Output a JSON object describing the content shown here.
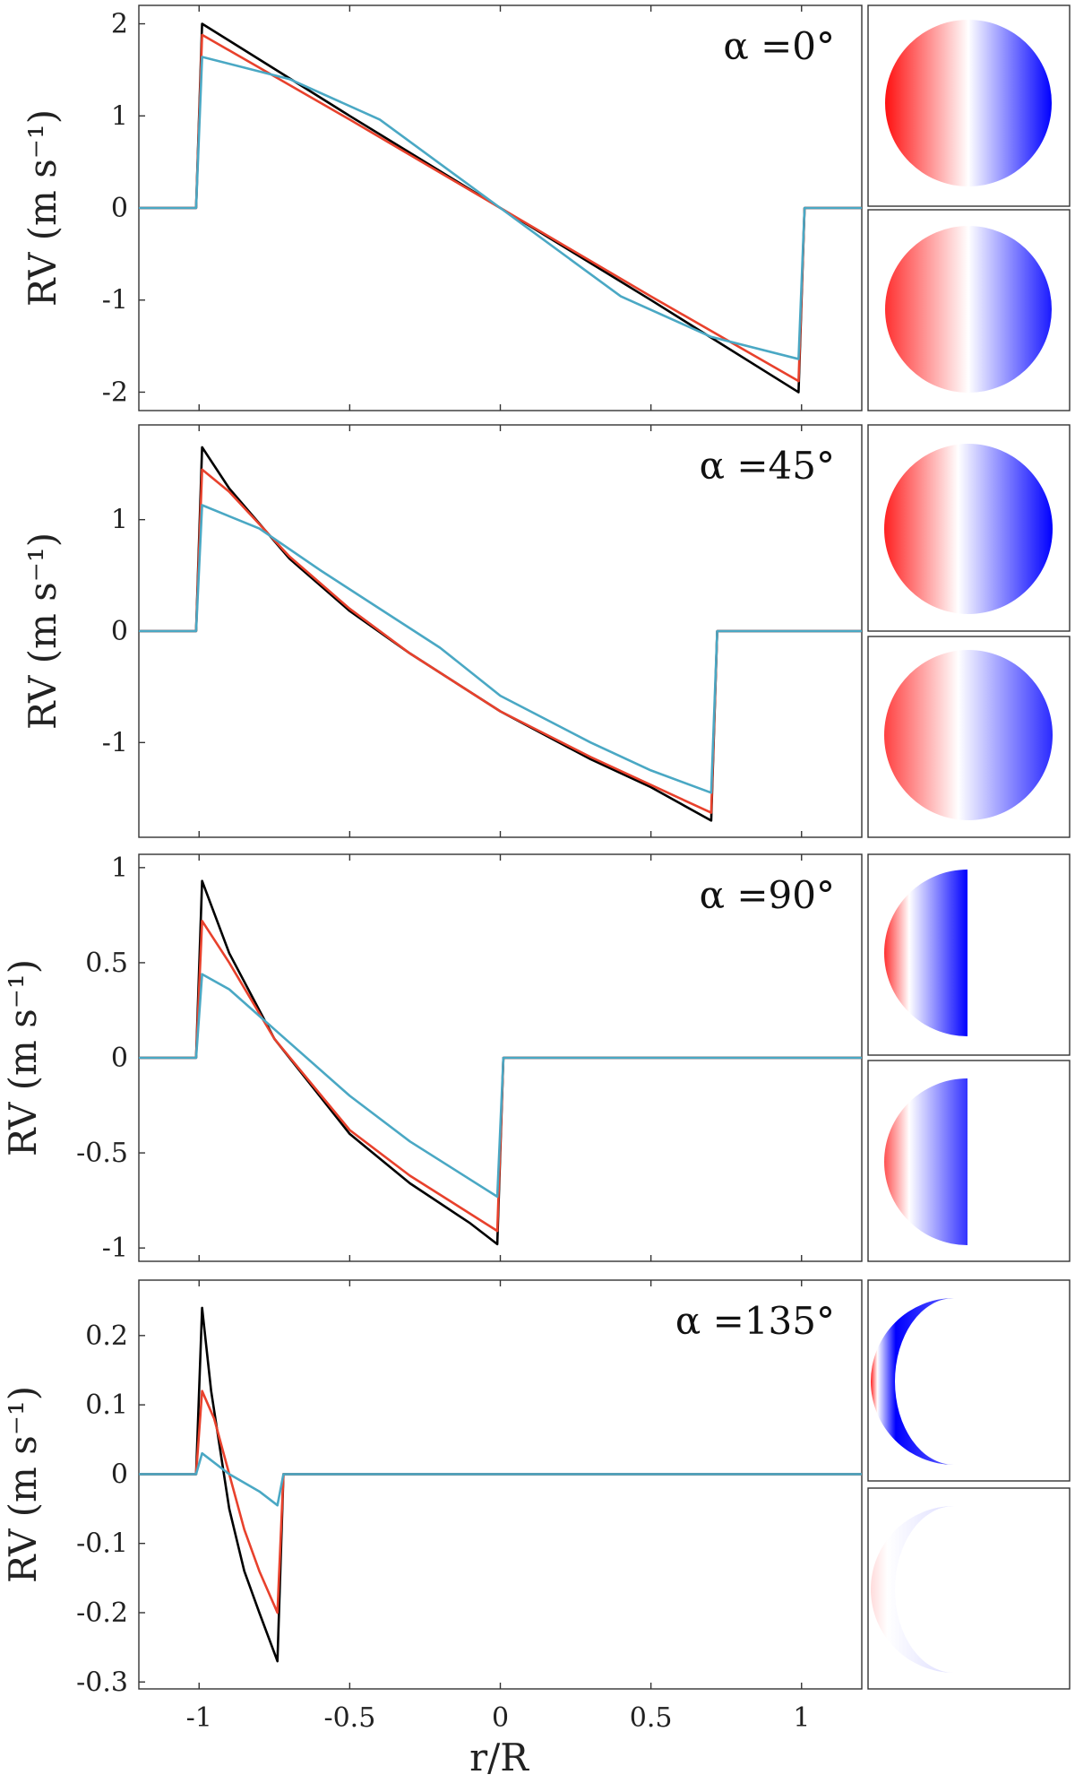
{
  "figure": {
    "xlabel": "r/R",
    "colors": {
      "series_black": "#000000",
      "series_red": "#e8412c",
      "series_teal": "#4aa8c4",
      "map_red": "#ff0000",
      "map_blue": "#0000ff"
    },
    "map_descriptions": [
      "doppler map top",
      "doppler map bottom"
    ]
  },
  "chart_data": [
    {
      "type": "line",
      "panel_label": "α =0°",
      "ylabel": "RV (m s⁻¹)",
      "xlim": [
        -1.2,
        1.2
      ],
      "ylim": [
        -2.2,
        2.2
      ],
      "xticks": [
        -1,
        -0.5,
        0,
        0.5,
        1
      ],
      "xtick_labels": [
        "-1",
        "-0.5",
        "0",
        "0.5",
        "1"
      ],
      "yticks": [
        2,
        1,
        0,
        -1,
        -2
      ],
      "ytick_labels": [
        "2",
        "1",
        "0",
        "-1",
        "-2"
      ],
      "series": [
        {
          "name": "black",
          "color": "#000000",
          "x": [
            -1.2,
            -1.01,
            -0.99,
            -0.5,
            0,
            0.5,
            0.99,
            1.01,
            1.2
          ],
          "y": [
            0,
            0,
            2.0,
            1.0,
            0,
            -1.0,
            -2.0,
            0,
            0
          ]
        },
        {
          "name": "red",
          "color": "#e8412c",
          "x": [
            -1.2,
            -1.01,
            -0.99,
            -0.5,
            0,
            0.5,
            0.99,
            1.01,
            1.2
          ],
          "y": [
            0,
            0,
            1.88,
            0.96,
            0,
            -0.96,
            -1.88,
            0,
            0
          ]
        },
        {
          "name": "teal",
          "color": "#4aa8c4",
          "x": [
            -1.2,
            -1.01,
            -0.99,
            -0.7,
            -0.4,
            0,
            0.4,
            0.7,
            0.99,
            1.01,
            1.2
          ],
          "y": [
            0,
            0,
            1.64,
            1.4,
            0.96,
            0,
            -0.96,
            -1.4,
            -1.64,
            0,
            0
          ]
        }
      ]
    },
    {
      "type": "line",
      "panel_label": "α =45°",
      "ylabel": "RV (m s⁻¹)",
      "xlim": [
        -1.2,
        1.2
      ],
      "ylim": [
        -1.85,
        1.85
      ],
      "xticks": [
        -1,
        -0.5,
        0,
        0.5,
        1
      ],
      "xtick_labels": [
        "-1",
        "-0.5",
        "0",
        "0.5",
        "1"
      ],
      "yticks": [
        1,
        0,
        -1
      ],
      "ytick_labels": [
        "1",
        "0",
        "-1"
      ],
      "series": [
        {
          "name": "black",
          "color": "#000000",
          "x": [
            -1.2,
            -1.01,
            -0.99,
            -0.9,
            -0.7,
            -0.5,
            -0.3,
            0,
            0.3,
            0.5,
            0.7,
            0.72,
            1.2
          ],
          "y": [
            0,
            0,
            1.65,
            1.28,
            0.65,
            0.18,
            -0.2,
            -0.72,
            -1.15,
            -1.4,
            -1.7,
            0,
            0
          ]
        },
        {
          "name": "red",
          "color": "#e8412c",
          "x": [
            -1.2,
            -1.01,
            -0.99,
            -0.9,
            -0.7,
            -0.5,
            -0.3,
            0,
            0.3,
            0.5,
            0.7,
            0.72,
            1.2
          ],
          "y": [
            0,
            0,
            1.45,
            1.25,
            0.67,
            0.2,
            -0.2,
            -0.72,
            -1.13,
            -1.38,
            -1.63,
            0,
            0
          ]
        },
        {
          "name": "teal",
          "color": "#4aa8c4",
          "x": [
            -1.2,
            -1.01,
            -0.99,
            -0.8,
            -0.6,
            -0.4,
            -0.2,
            0,
            0.3,
            0.5,
            0.7,
            0.72,
            1.2
          ],
          "y": [
            0,
            0,
            1.13,
            0.92,
            0.55,
            0.2,
            -0.15,
            -0.58,
            -1.0,
            -1.25,
            -1.45,
            0,
            0
          ]
        }
      ]
    },
    {
      "type": "line",
      "panel_label": "α =90°",
      "ylabel": "RV (m s⁻¹)",
      "xlim": [
        -1.2,
        1.2
      ],
      "ylim": [
        -1.07,
        1.07
      ],
      "xticks": [
        -1,
        -0.5,
        0,
        0.5,
        1
      ],
      "xtick_labels": [
        "-1",
        "-0.5",
        "0",
        "0.5",
        "1"
      ],
      "yticks": [
        1,
        0.5,
        0,
        -0.5,
        -1
      ],
      "ytick_labels": [
        "1",
        "0.5",
        "0",
        "-0.5",
        "-1"
      ],
      "series": [
        {
          "name": "black",
          "color": "#000000",
          "x": [
            -1.2,
            -1.01,
            -0.99,
            -0.9,
            -0.75,
            -0.5,
            -0.3,
            -0.1,
            -0.01,
            0.01,
            1.2
          ],
          "y": [
            0,
            0,
            0.93,
            0.55,
            0.1,
            -0.4,
            -0.66,
            -0.87,
            -0.98,
            0,
            0
          ]
        },
        {
          "name": "red",
          "color": "#e8412c",
          "x": [
            -1.2,
            -1.01,
            -0.99,
            -0.9,
            -0.75,
            -0.5,
            -0.3,
            -0.1,
            -0.01,
            0.01,
            1.2
          ],
          "y": [
            0,
            0,
            0.72,
            0.5,
            0.1,
            -0.38,
            -0.62,
            -0.82,
            -0.91,
            0,
            0
          ]
        },
        {
          "name": "teal",
          "color": "#4aa8c4",
          "x": [
            -1.2,
            -1.01,
            -0.99,
            -0.9,
            -0.75,
            -0.5,
            -0.3,
            -0.1,
            -0.01,
            0.01,
            1.2
          ],
          "y": [
            0,
            0,
            0.44,
            0.36,
            0.15,
            -0.2,
            -0.44,
            -0.64,
            -0.73,
            0,
            0
          ]
        }
      ]
    },
    {
      "type": "line",
      "panel_label": "α =135°",
      "ylabel": "RV (m s⁻¹)",
      "xlim": [
        -1.2,
        1.2
      ],
      "ylim": [
        -0.31,
        0.28
      ],
      "xticks": [
        -1,
        -0.5,
        0,
        0.5,
        1
      ],
      "xtick_labels": [
        "-1",
        "-0.5",
        "0",
        "0.5",
        "1"
      ],
      "yticks": [
        0.2,
        0.1,
        0,
        -0.1,
        -0.2,
        -0.3
      ],
      "ytick_labels": [
        "0.2",
        "0.1",
        "0",
        "-0.1",
        "-0.2",
        "-0.3"
      ],
      "series": [
        {
          "name": "black",
          "color": "#000000",
          "x": [
            -1.2,
            -1.01,
            -0.99,
            -0.96,
            -0.9,
            -0.85,
            -0.8,
            -0.74,
            -0.72,
            1.2
          ],
          "y": [
            0,
            0,
            0.24,
            0.12,
            -0.05,
            -0.14,
            -0.2,
            -0.27,
            0,
            0
          ]
        },
        {
          "name": "red",
          "color": "#e8412c",
          "x": [
            -1.2,
            -1.01,
            -0.99,
            -0.95,
            -0.9,
            -0.85,
            -0.8,
            -0.74,
            -0.72,
            1.2
          ],
          "y": [
            0,
            0,
            0.12,
            0.08,
            0.0,
            -0.08,
            -0.14,
            -0.2,
            0,
            0
          ]
        },
        {
          "name": "teal",
          "color": "#4aa8c4",
          "x": [
            -1.2,
            -1.01,
            -0.99,
            -0.9,
            -0.8,
            -0.74,
            -0.72,
            1.2
          ],
          "y": [
            0,
            0,
            0.03,
            0.0,
            -0.025,
            -0.045,
            0,
            0
          ]
        }
      ]
    }
  ]
}
